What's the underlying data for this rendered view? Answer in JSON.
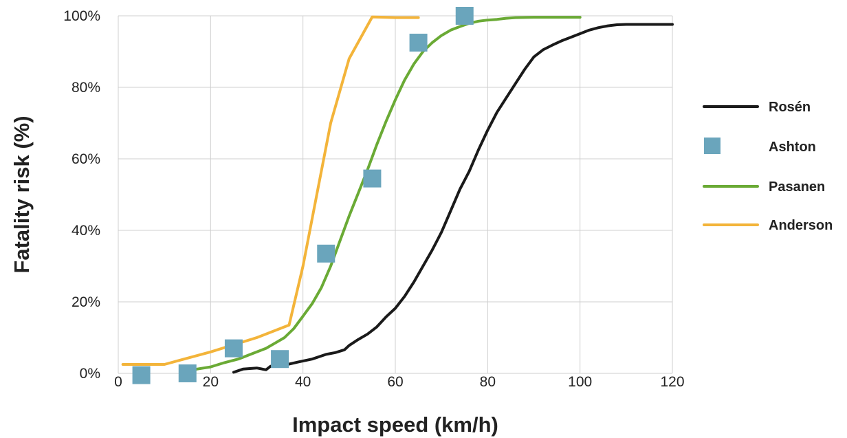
{
  "chart_data": {
    "type": "line",
    "title": "",
    "xlabel": "Impact speed (km/h)",
    "ylabel": "Fatality risk (%)",
    "xlim": [
      0,
      120
    ],
    "ylim": [
      0,
      100
    ],
    "xticks": [
      0,
      20,
      40,
      60,
      80,
      100,
      120
    ],
    "yticks": [
      0,
      20,
      40,
      60,
      80,
      100
    ],
    "xtick_labels": [
      "0",
      "20",
      "40",
      "60",
      "80",
      "100",
      "120"
    ],
    "ytick_labels": [
      "0%",
      "20%",
      "40%",
      "60%",
      "80%",
      "100%"
    ],
    "grid": true,
    "legend_position": "right",
    "series": [
      {
        "name": "Rosén",
        "kind": "line",
        "color": "#1a1a1a",
        "points": [
          [
            25,
            0.3
          ],
          [
            27,
            1.2
          ],
          [
            30,
            1.5
          ],
          [
            32,
            1.0
          ],
          [
            33,
            2.0
          ],
          [
            36,
            2.3
          ],
          [
            39,
            3.2
          ],
          [
            42,
            4.0
          ],
          [
            45,
            5.3
          ],
          [
            47,
            5.8
          ],
          [
            49,
            6.6
          ],
          [
            50,
            7.8
          ],
          [
            52,
            9.5
          ],
          [
            54,
            11.0
          ],
          [
            56,
            13.0
          ],
          [
            58,
            15.8
          ],
          [
            60,
            18.2
          ],
          [
            62,
            21.5
          ],
          [
            64,
            25.5
          ],
          [
            66,
            30.0
          ],
          [
            68,
            34.5
          ],
          [
            70,
            39.5
          ],
          [
            72,
            45.5
          ],
          [
            74,
            51.5
          ],
          [
            76,
            56.5
          ],
          [
            78,
            62.5
          ],
          [
            80,
            68.0
          ],
          [
            82,
            73.0
          ],
          [
            84,
            77.0
          ],
          [
            86,
            81.0
          ],
          [
            88,
            85.0
          ],
          [
            90,
            88.5
          ],
          [
            92,
            90.5
          ],
          [
            94,
            91.8
          ],
          [
            96,
            93.0
          ],
          [
            98,
            94.0
          ],
          [
            100,
            95.0
          ],
          [
            102,
            96.0
          ],
          [
            104,
            96.7
          ],
          [
            106,
            97.2
          ],
          [
            108,
            97.5
          ],
          [
            110,
            97.6
          ],
          [
            112,
            97.6
          ],
          [
            114,
            97.6
          ],
          [
            116,
            97.6
          ],
          [
            118,
            97.6
          ],
          [
            120,
            97.6
          ]
        ]
      },
      {
        "name": "Ashton",
        "kind": "marker",
        "color": "#6aa5bc",
        "points": [
          [
            5,
            -0.5
          ],
          [
            15,
            0
          ],
          [
            25,
            7
          ],
          [
            35,
            4
          ],
          [
            45,
            33.5
          ],
          [
            55,
            54.5
          ],
          [
            65,
            92.5
          ],
          [
            75,
            100
          ]
        ]
      },
      {
        "name": "Pasanen",
        "kind": "line",
        "color": "#6aaa35",
        "points": [
          [
            15,
            0.5
          ],
          [
            17,
            1.2
          ],
          [
            20,
            1.8
          ],
          [
            23,
            3.0
          ],
          [
            26,
            4.0
          ],
          [
            29,
            5.5
          ],
          [
            32,
            7.0
          ],
          [
            34,
            8.5
          ],
          [
            36,
            10.0
          ],
          [
            38,
            12.5
          ],
          [
            40,
            16.0
          ],
          [
            42,
            19.5
          ],
          [
            44,
            24.0
          ],
          [
            46,
            30.0
          ],
          [
            48,
            37.0
          ],
          [
            50,
            44.0
          ],
          [
            52,
            50.5
          ],
          [
            54,
            57.0
          ],
          [
            56,
            64.0
          ],
          [
            58,
            70.5
          ],
          [
            60,
            76.5
          ],
          [
            62,
            82.0
          ],
          [
            64,
            86.5
          ],
          [
            66,
            90.0
          ],
          [
            68,
            92.5
          ],
          [
            70,
            94.5
          ],
          [
            72,
            96.0
          ],
          [
            74,
            97.0
          ],
          [
            76,
            97.9
          ],
          [
            78,
            98.5
          ],
          [
            80,
            98.8
          ],
          [
            82,
            99.0
          ],
          [
            84,
            99.3
          ],
          [
            86,
            99.5
          ],
          [
            90,
            99.6
          ],
          [
            100,
            99.6
          ]
        ]
      },
      {
        "name": "Anderson",
        "kind": "line",
        "color": "#f3b43a",
        "points": [
          [
            1,
            2.5
          ],
          [
            5,
            2.5
          ],
          [
            10,
            2.5
          ],
          [
            20,
            6.0
          ],
          [
            30,
            10.0
          ],
          [
            37,
            13.5
          ],
          [
            40,
            30.0
          ],
          [
            43,
            50.0
          ],
          [
            46,
            70.0
          ],
          [
            50,
            88.0
          ],
          [
            55,
            99.7
          ],
          [
            60,
            99.5
          ],
          [
            65,
            99.5
          ]
        ]
      }
    ]
  }
}
